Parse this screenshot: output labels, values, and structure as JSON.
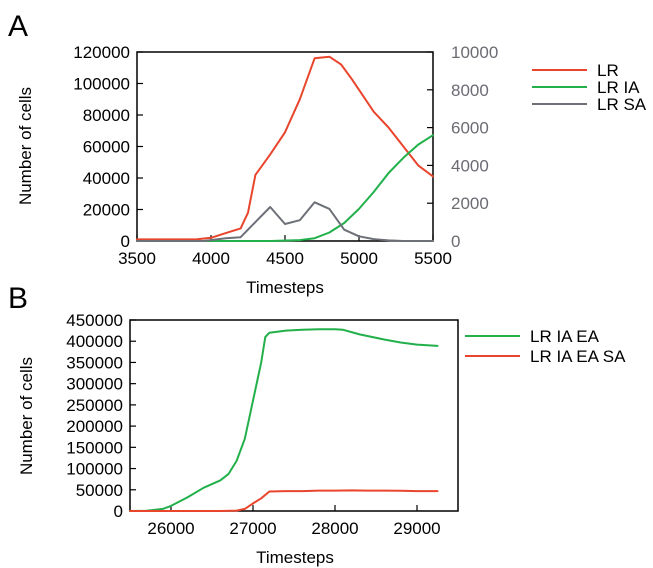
{
  "chart_data": [
    {
      "panel": "A",
      "type": "line",
      "xlabel": "Timesteps",
      "ylabel": "Number of cells",
      "xlim": [
        3500,
        5500
      ],
      "xticks": [
        3500,
        4000,
        4500,
        5000,
        5500
      ],
      "ylim_left": [
        0,
        120000
      ],
      "yticks_left": [
        0,
        20000,
        40000,
        60000,
        80000,
        100000,
        120000
      ],
      "ylim_right": [
        0,
        10000
      ],
      "yticks_right": [
        0,
        2000,
        4000,
        6000,
        8000,
        10000
      ],
      "legend_position": "right",
      "grid": false,
      "series": [
        {
          "name": "LR",
          "color": "#e8452c",
          "axis": "left",
          "x": [
            3500,
            3700,
            3900,
            4000,
            4100,
            4200,
            4250,
            4300,
            4400,
            4500,
            4600,
            4700,
            4800,
            4880,
            4950,
            5000,
            5100,
            5200,
            5300,
            5400,
            5500
          ],
          "y": [
            1000,
            1000,
            1000,
            2000,
            5000,
            8000,
            18000,
            42000,
            55000,
            69000,
            90000,
            116000,
            117000,
            112000,
            103000,
            96000,
            82000,
            72000,
            60000,
            48000,
            41000
          ]
        },
        {
          "name": "LR IA",
          "color": "#22b04a",
          "axis": "right",
          "x": [
            3500,
            4400,
            4600,
            4700,
            4800,
            4900,
            5000,
            5100,
            5200,
            5300,
            5400,
            5500
          ],
          "y": [
            0,
            0,
            50,
            150,
            450,
            950,
            1700,
            2600,
            3600,
            4400,
            5100,
            5600
          ]
        },
        {
          "name": "LR SA",
          "color": "#6e7078",
          "axis": "right",
          "x": [
            3500,
            3950,
            4100,
            4200,
            4300,
            4400,
            4500,
            4600,
            4700,
            4800,
            4900,
            5000,
            5100,
            5200,
            5300,
            5500
          ],
          "y": [
            0,
            0,
            150,
            200,
            1000,
            1800,
            900,
            1100,
            2050,
            1700,
            600,
            250,
            100,
            30,
            0,
            0
          ]
        }
      ]
    },
    {
      "panel": "B",
      "type": "line",
      "xlabel": "Timesteps",
      "ylabel": "Number of cells",
      "xlim": [
        25500,
        29500
      ],
      "xticks": [
        26000,
        27000,
        28000,
        29000
      ],
      "ylim": [
        0,
        450000
      ],
      "yticks": [
        0,
        50000,
        100000,
        150000,
        200000,
        250000,
        300000,
        350000,
        400000,
        450000
      ],
      "legend_position": "right",
      "grid": false,
      "series": [
        {
          "name": "LR IA EA",
          "color": "#22b04a",
          "x": [
            25500,
            25700,
            25900,
            26000,
            26200,
            26400,
            26600,
            26700,
            26800,
            26900,
            27000,
            27100,
            27150,
            27200,
            27400,
            27600,
            27800,
            28000,
            28100,
            28300,
            28600,
            28800,
            29000,
            29250
          ],
          "y": [
            0,
            500,
            5000,
            12000,
            32000,
            55000,
            72000,
            87000,
            118000,
            170000,
            260000,
            350000,
            410000,
            420000,
            425000,
            427000,
            428000,
            428000,
            427000,
            416000,
            404000,
            397000,
            392000,
            389000
          ]
        },
        {
          "name": "LR IA EA SA",
          "color": "#e8452c",
          "x": [
            25500,
            26600,
            26800,
            26900,
            27000,
            27100,
            27200,
            27400,
            27600,
            27800,
            28000,
            28200,
            28400,
            28600,
            28800,
            29000,
            29250
          ],
          "y": [
            0,
            0,
            1000,
            5000,
            18000,
            30000,
            46000,
            47000,
            47000,
            48000,
            48000,
            48500,
            48000,
            48000,
            47500,
            47000,
            47000
          ]
        }
      ]
    }
  ]
}
